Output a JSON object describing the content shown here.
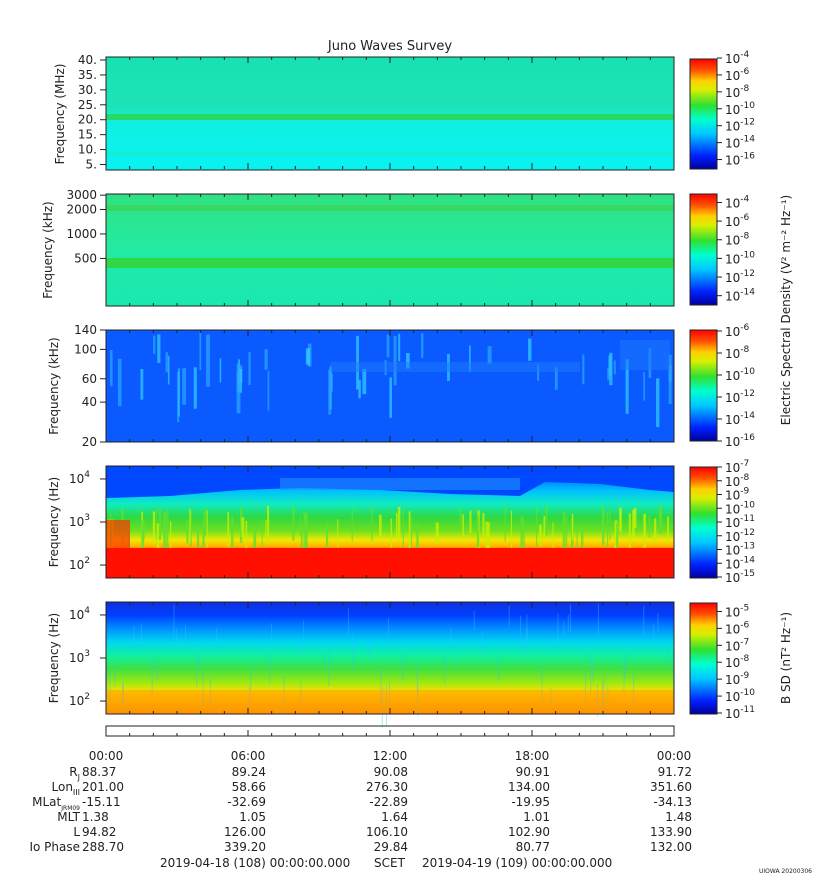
{
  "chart_data": {
    "type": "heatmap",
    "title": "Juno Waves Survey",
    "watermark": "UIOWA 20200306",
    "time_axis": {
      "ticks": [
        "00:00",
        "06:00",
        "12:00",
        "18:00",
        "00:00"
      ],
      "range_hours": [
        0,
        24
      ]
    },
    "ephemeris": [
      {
        "label": "R",
        "sub": "J",
        "values": [
          "88.37",
          "89.24",
          "90.08",
          "90.91",
          "91.72"
        ]
      },
      {
        "label": "Lon",
        "sub": "III",
        "values": [
          "201.00",
          "58.66",
          "276.30",
          "134.00",
          "351.60"
        ]
      },
      {
        "label": "MLat",
        "sub": "JRM09",
        "values": [
          "-15.11",
          "-32.69",
          "-22.89",
          "-19.95",
          "-34.13"
        ]
      },
      {
        "label": "MLT",
        "sub": "",
        "values": [
          "1.38",
          "1.05",
          "1.64",
          "1.01",
          "1.48"
        ]
      },
      {
        "label": "L",
        "sub": "",
        "values": [
          "94.82",
          "126.00",
          "106.10",
          "102.90",
          "133.90"
        ]
      },
      {
        "label": "Io Phase",
        "sub": "",
        "values": [
          "288.70",
          "339.20",
          "29.84",
          "80.77",
          "132.00"
        ]
      }
    ],
    "footer": {
      "start": "2019-04-18 (108) 00:00:00.000",
      "scet": "SCET",
      "end": "2019-04-19 (109) 00:00:00.000"
    },
    "panels": [
      {
        "ylabel": "Frequency (MHz)",
        "scale": "linear",
        "ylim": [
          3.5,
          41
        ],
        "yticks": [
          "40.",
          "35.",
          "30.",
          "25.",
          "20.",
          "15.",
          "10.",
          "5."
        ],
        "ytick_values": [
          40,
          35,
          30,
          25,
          20,
          15,
          10,
          5
        ],
        "colorbar_exponents": [
          -4,
          -6,
          -8,
          -10,
          -12,
          -14,
          -16
        ],
        "colorbar_range": [
          -17,
          -4
        ]
      },
      {
        "ylabel": "Frequency (kHz)",
        "scale": "log",
        "ylim": [
          130,
          3100
        ],
        "yticks": [
          "3000",
          "2000",
          "1000",
          "500"
        ],
        "ytick_values": [
          3000,
          2000,
          1000,
          500
        ],
        "colorbar_exponents": [
          -4,
          -6,
          -8,
          -10,
          -12,
          -14
        ],
        "colorbar_range": [
          -15,
          -3.2
        ]
      },
      {
        "ylabel": "Frequency (kHz)",
        "scale": "log",
        "ylim": [
          20,
          140
        ],
        "yticks": [
          "140",
          "100",
          "60",
          "40",
          "20"
        ],
        "ytick_values": [
          140,
          100,
          60,
          40,
          20
        ],
        "colorbar_exponents": [
          -6,
          -8,
          -10,
          -12,
          -14,
          -16
        ],
        "colorbar_range": [
          -16,
          -6
        ]
      },
      {
        "ylabel": "Frequency (Hz)",
        "scale": "log",
        "ylim": [
          50,
          20000
        ],
        "yticks": [
          "10",
          "10",
          "10"
        ],
        "ytick_exponents": [
          "4",
          "3",
          "2"
        ],
        "ytick_values": [
          10000,
          1000,
          100
        ],
        "colorbar_exponents": [
          -7,
          -8,
          -9,
          -10,
          -11,
          -12,
          -13,
          -14,
          -15
        ],
        "colorbar_range": [
          -15,
          -7
        ]
      },
      {
        "ylabel": "Frequency (Hz)",
        "scale": "log",
        "ylim": [
          50,
          20000
        ],
        "yticks": [
          "10",
          "10",
          "10"
        ],
        "ytick_exponents": [
          "4",
          "3",
          "2"
        ],
        "ytick_values": [
          10000,
          1000,
          100
        ],
        "colorbar_exponents": [
          -5,
          -6,
          -7,
          -8,
          -9,
          -10,
          -11
        ],
        "colorbar_range": [
          -11,
          -4.5
        ]
      }
    ],
    "colorbar_labels": {
      "electric": "Electric Spectral Density (V² m⁻² Hz⁻¹)",
      "magnetic": "B SD (nT² Hz⁻¹)"
    }
  }
}
